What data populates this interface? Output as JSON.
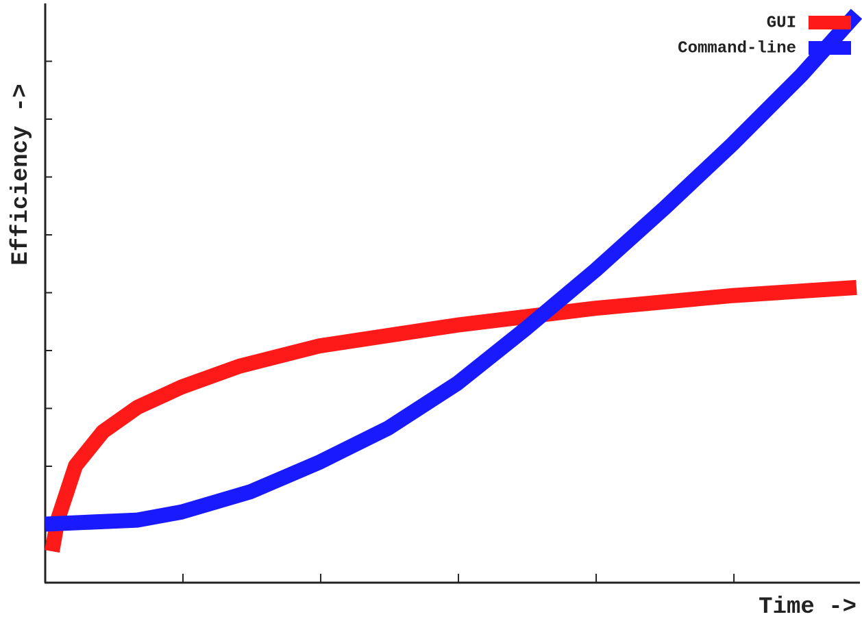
{
  "chart_data": {
    "type": "line",
    "x_label": "Time ->",
    "y_label": "Efficiency ->",
    "xlim": [
      0,
      5.9
    ],
    "ylim": [
      0,
      10
    ],
    "xticks": [
      1,
      2,
      3,
      4,
      5
    ],
    "yticks": [
      1,
      2,
      3,
      4,
      5,
      6,
      7,
      8,
      9
    ],
    "legend": "top-right",
    "series": [
      {
        "name": "GUI",
        "color": "#ff1a1a",
        "x": [
          0.05,
          0.09,
          0.22,
          0.42,
          0.67,
          0.99,
          1.41,
          1.99,
          2.99,
          3.99,
          4.99,
          5.89
        ],
        "values": [
          0.53,
          1.07,
          2.01,
          2.6,
          3.02,
          3.37,
          3.73,
          4.08,
          4.44,
          4.73,
          4.95,
          5.09
        ]
      },
      {
        "name": "Command-line",
        "color": "#1a1aff",
        "x": [
          0,
          0.67,
          0.99,
          1.49,
          1.99,
          2.49,
          2.99,
          3.49,
          3.99,
          4.49,
          4.99,
          5.49,
          5.89
        ],
        "values": [
          1.0,
          1.07,
          1.21,
          1.56,
          2.07,
          2.66,
          3.43,
          4.38,
          5.38,
          6.45,
          7.57,
          8.76,
          9.82
        ]
      }
    ]
  }
}
